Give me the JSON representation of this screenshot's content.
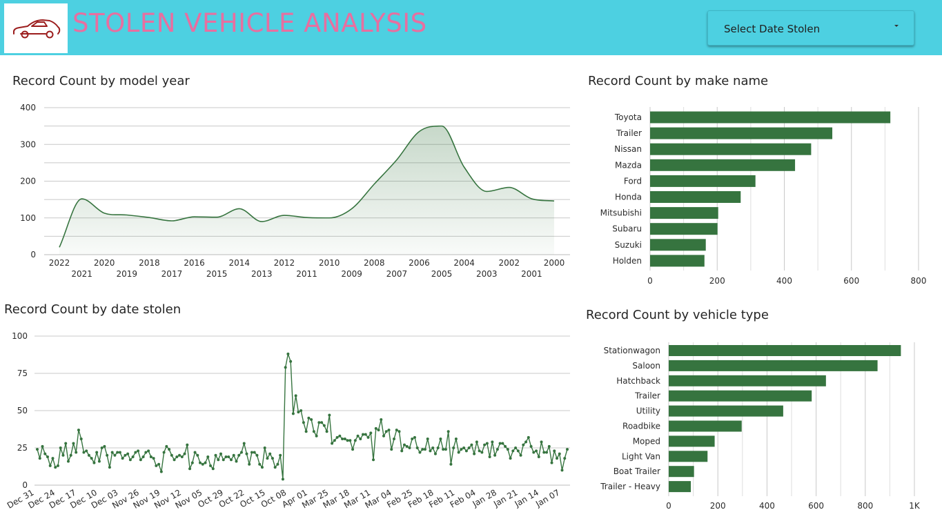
{
  "header": {
    "title": "STOLEN VEHICLE ANALYSIS",
    "logo_icon": "car-icon",
    "date_filter": {
      "label": "Select Date Stolen",
      "icon": "dropdown-caret-icon"
    }
  },
  "colors": {
    "header_bg": "#4dd0e1",
    "title_text": "#e76fa0",
    "bar": "#36743f",
    "line": "#36743f",
    "logo_car": "#9b1c1c"
  },
  "chart_data": [
    {
      "id": "model_year",
      "type": "area",
      "title": "Record Count by model year",
      "xlabel": "",
      "ylabel": "",
      "ylim": [
        0,
        400
      ],
      "yticks": [
        0,
        100,
        200,
        300,
        400
      ],
      "grid": true,
      "x": [
        "2022",
        "2021",
        "2020",
        "2019",
        "2018",
        "2017",
        "2016",
        "2015",
        "2014",
        "2013",
        "2012",
        "2011",
        "2010",
        "2009",
        "2008",
        "2007",
        "2006",
        "2005",
        "2004",
        "2003",
        "2002",
        "2001",
        "2000"
      ],
      "values": [
        20,
        152,
        113,
        108,
        101,
        92,
        103,
        102,
        125,
        90,
        107,
        101,
        100,
        125,
        192,
        258,
        335,
        350,
        238,
        172,
        183,
        152,
        146
      ]
    },
    {
      "id": "make_name",
      "type": "bar",
      "orientation": "horizontal",
      "title": "Record Count by make name",
      "xlim": [
        0,
        800
      ],
      "xticks": [
        0,
        200,
        400,
        600,
        800
      ],
      "tick_labels": [
        "0",
        "200",
        "400",
        "600",
        "800"
      ],
      "grid": true,
      "categories": [
        "Toyota",
        "Trailer",
        "Nissan",
        "Mazda",
        "Ford",
        "Honda",
        "Mitsubishi",
        "Subaru",
        "Suzuki",
        "Holden"
      ],
      "values": [
        716,
        543,
        480,
        432,
        314,
        270,
        203,
        201,
        166,
        162
      ]
    },
    {
      "id": "date_stolen",
      "type": "line",
      "title": "Record Count by date stolen",
      "xlabel": "",
      "ylabel": "",
      "ylim": [
        0,
        100
      ],
      "yticks": [
        0,
        25,
        50,
        75,
        100
      ],
      "grid": true,
      "tick_labels": [
        "Dec 31",
        "Dec 24",
        "Dec 17",
        "Dec 10",
        "Dec 03",
        "Nov 26",
        "Nov 19",
        "Nov 12",
        "Nov 05",
        "Oct 29",
        "Oct 22",
        "Oct 15",
        "Oct 08",
        "Apr 01",
        "Mar 25",
        "Mar 18",
        "Mar 11",
        "Mar 04",
        "Feb 25",
        "Feb 18",
        "Feb 11",
        "Feb 04",
        "Jan 28",
        "Jan 21",
        "Jan 14",
        "Jan 07"
      ],
      "values": [
        24,
        18,
        26,
        21,
        19,
        13,
        18,
        12,
        13,
        25,
        20,
        28,
        16,
        20,
        28,
        22,
        37,
        31,
        22,
        23,
        20,
        18,
        15,
        22,
        16,
        25,
        26,
        20,
        12,
        22,
        20,
        22,
        22,
        18,
        20,
        21,
        17,
        19,
        22,
        23,
        17,
        19,
        22,
        23,
        19,
        18,
        13,
        14,
        9,
        22,
        26,
        24,
        20,
        17,
        19,
        20,
        19,
        21,
        27,
        11,
        15,
        22,
        20,
        15,
        14,
        15,
        19,
        13,
        11,
        20,
        17,
        21,
        17,
        19,
        19,
        17,
        20,
        16,
        20,
        22,
        28,
        21,
        14,
        22,
        22,
        20,
        14,
        12,
        25,
        18,
        21,
        18,
        12,
        14,
        20,
        4,
        79,
        88,
        83,
        48,
        60,
        49,
        50,
        42,
        36,
        45,
        44,
        36,
        33,
        42,
        42,
        40,
        36,
        47,
        28,
        30,
        32,
        33,
        31,
        31,
        30,
        30,
        24,
        30,
        33,
        31,
        34,
        34,
        32,
        35,
        17,
        38,
        37,
        44,
        33,
        36,
        37,
        24,
        31,
        37,
        36,
        23,
        27,
        26,
        25,
        31,
        32,
        25,
        22,
        24,
        24,
        31,
        23,
        25,
        21,
        25,
        31,
        24,
        24,
        36,
        14,
        25,
        31,
        22,
        24,
        25,
        23,
        25,
        27,
        21,
        29,
        23,
        22,
        27,
        28,
        19,
        29,
        20,
        24,
        28,
        28,
        26,
        24,
        18,
        23,
        25,
        23,
        20,
        27,
        29,
        32,
        26,
        22,
        23,
        19,
        29,
        22,
        22,
        26,
        15,
        23,
        18,
        21,
        10,
        18,
        24
      ]
    },
    {
      "id": "vehicle_type",
      "type": "bar",
      "orientation": "horizontal",
      "title": "Record Count by vehicle type",
      "xlim": [
        0,
        1000
      ],
      "xticks": [
        0,
        200,
        400,
        600,
        800,
        1000
      ],
      "tick_labels": [
        "0",
        "200",
        "400",
        "600",
        "800",
        "1K"
      ],
      "grid": true,
      "categories": [
        "Stationwagon",
        "Saloon",
        "Hatchback",
        "Trailer",
        "Utility",
        "Roadbike",
        "Moped",
        "Light Van",
        "Boat Trailer",
        "Trailer - Heavy"
      ],
      "values": [
        945,
        850,
        640,
        582,
        466,
        297,
        187,
        158,
        103,
        90
      ]
    }
  ]
}
